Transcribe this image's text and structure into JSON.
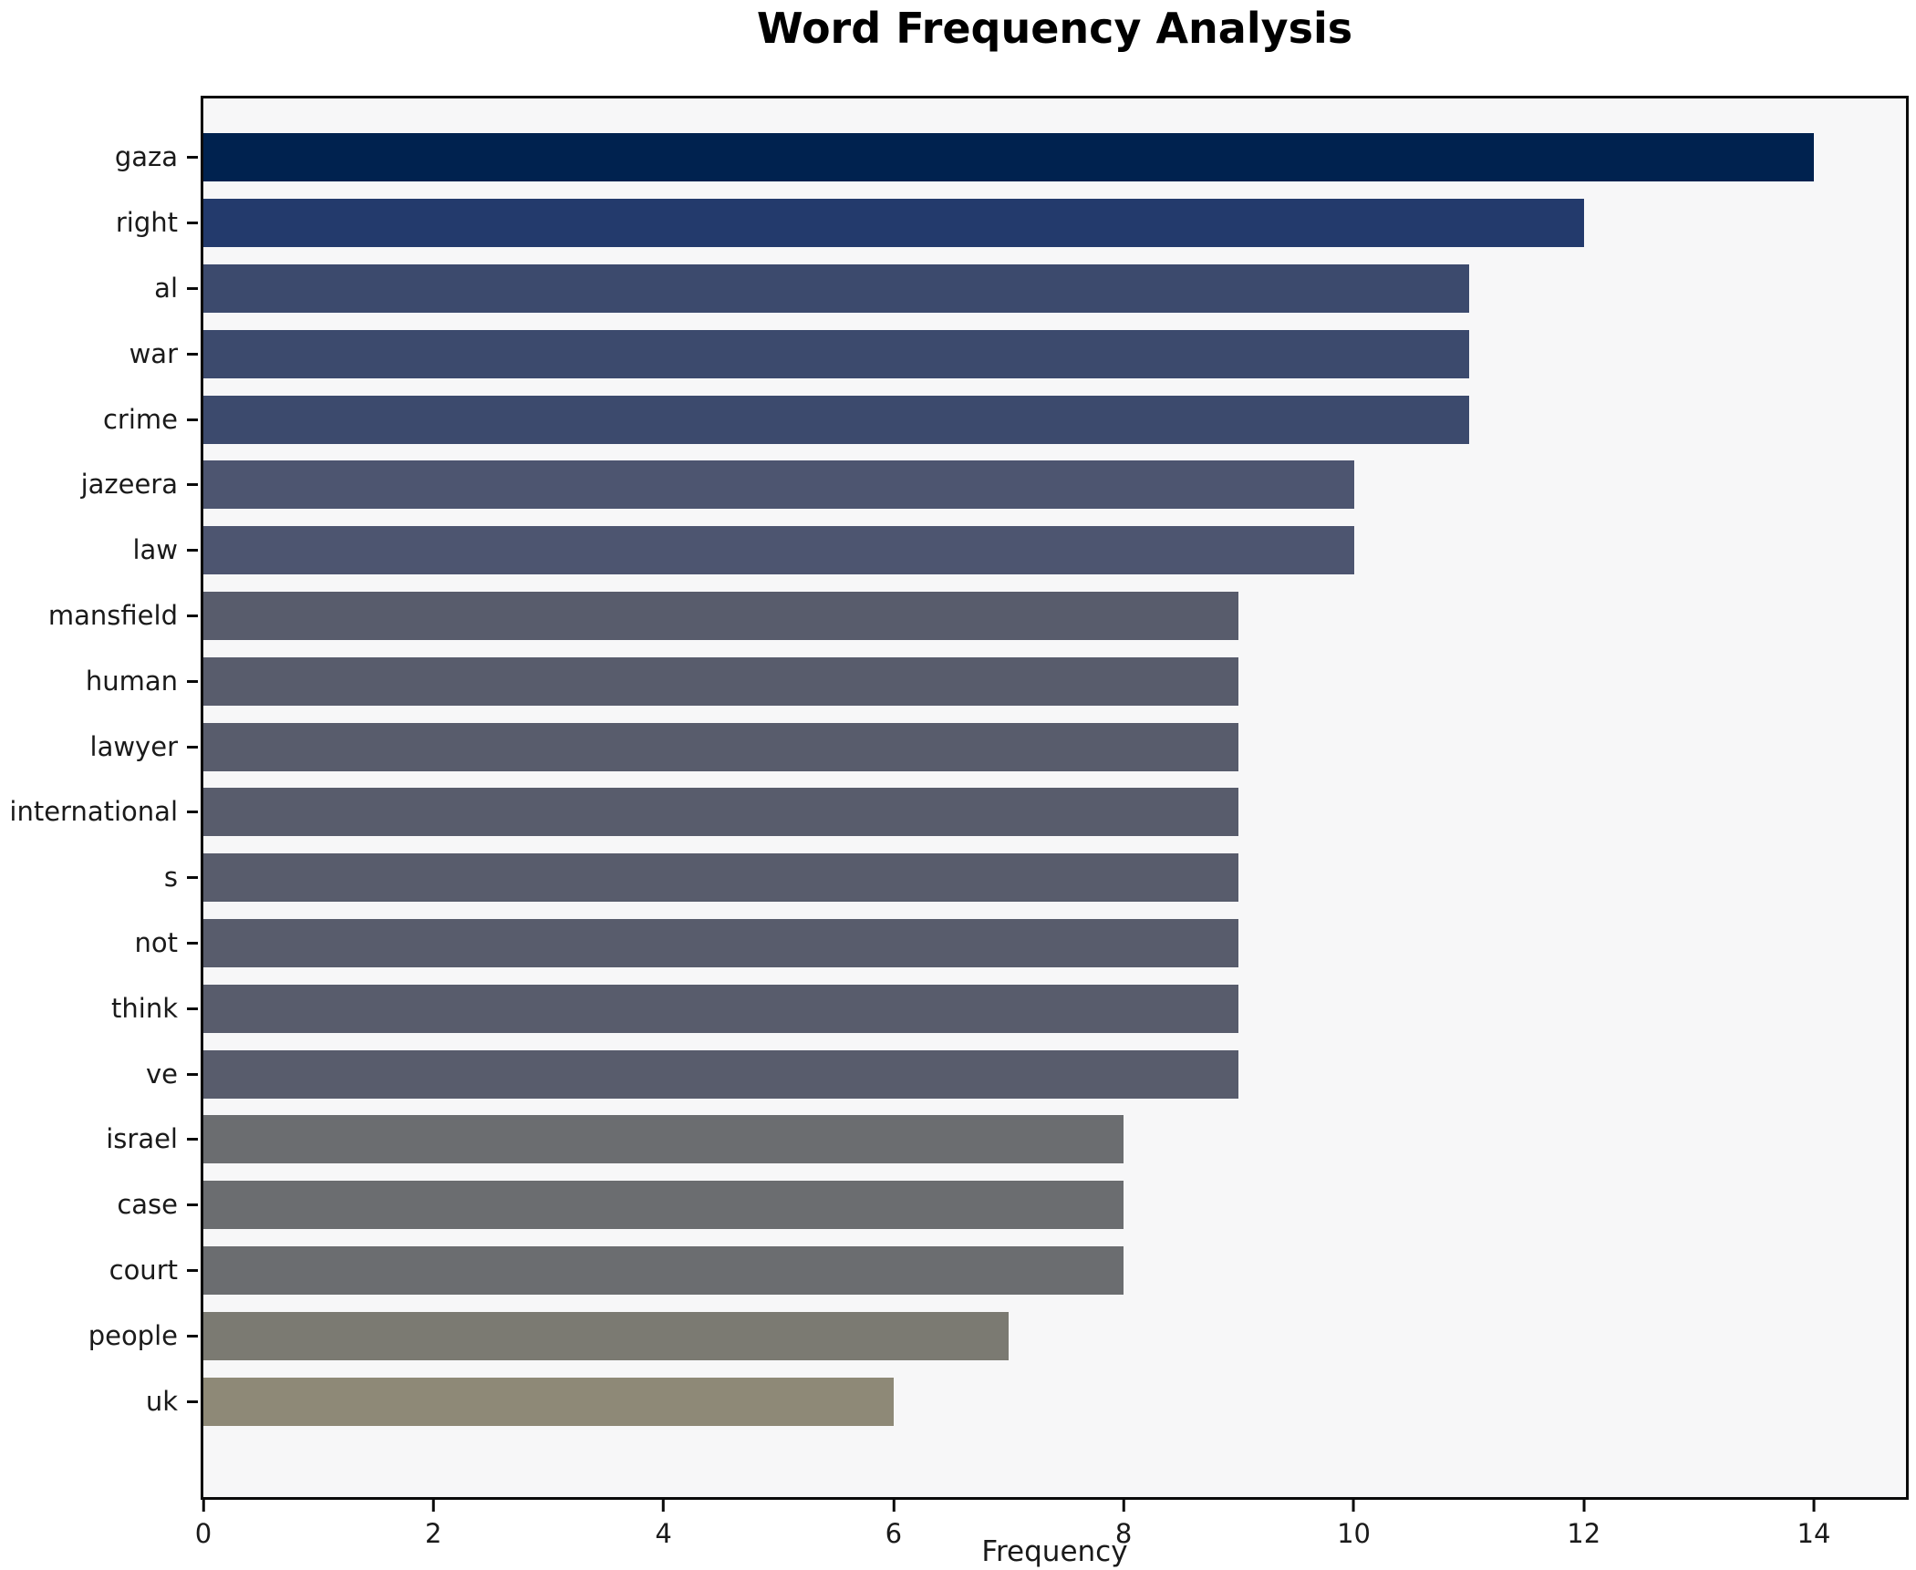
{
  "chart_data": {
    "type": "bar",
    "orientation": "horizontal",
    "title": "Word Frequency Analysis",
    "xlabel": "Frequency",
    "ylabel": "",
    "categories": [
      "gaza",
      "right",
      "al",
      "war",
      "crime",
      "jazeera",
      "law",
      "mansfield",
      "human",
      "lawyer",
      "international",
      "s",
      "not",
      "think",
      "ve",
      "israel",
      "case",
      "court",
      "people",
      "uk"
    ],
    "values": [
      14,
      12,
      11,
      11,
      11,
      10,
      10,
      9,
      9,
      9,
      9,
      9,
      9,
      9,
      9,
      8,
      8,
      8,
      7,
      6
    ],
    "bar_colors": [
      "#00224f",
      "#233a6c",
      "#3c4a6d",
      "#3c4a6d",
      "#3c4a6d",
      "#4d5570",
      "#4d5570",
      "#585c6c",
      "#585c6c",
      "#585c6c",
      "#585c6c",
      "#585c6c",
      "#585c6c",
      "#585c6c",
      "#585c6c",
      "#6b6d70",
      "#6b6d70",
      "#6b6d70",
      "#7b7a72",
      "#8e8977"
    ],
    "xlim": [
      0,
      14.8
    ],
    "xticks": [
      0,
      2,
      4,
      6,
      8,
      10,
      12,
      14
    ],
    "grid": false,
    "legend_position": "none",
    "plot_background": "#f7f7f8",
    "figure_background": "#ffffff",
    "spine_color": "#0a0a0a"
  }
}
